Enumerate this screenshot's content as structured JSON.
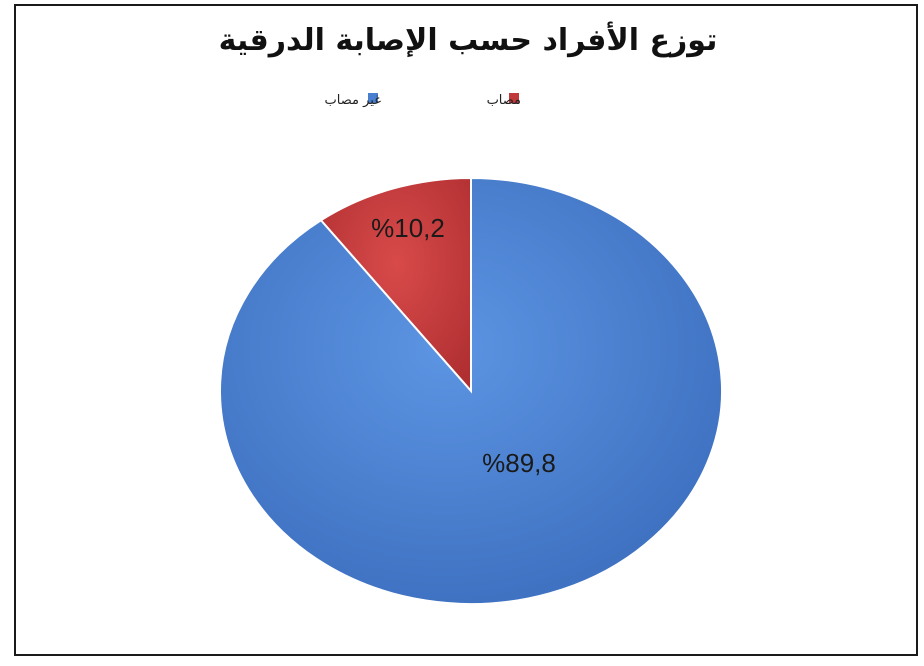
{
  "chart_data": {
    "type": "pie",
    "title": "توزع الأفراد حسب الإصابة الدرقية",
    "legend_position": "top",
    "slices": [
      {
        "name": "مصاب",
        "value": 10.2,
        "label": "%10,2",
        "color": "#c0393b"
      },
      {
        "name": "غير مصاب",
        "value": 89.8,
        "label": "%89,8",
        "color": "#4a7fcf"
      }
    ],
    "legend": [
      {
        "name": "غير مصاب",
        "color": "#4a7fcf"
      },
      {
        "name": "مصاب",
        "color": "#c0393b"
      }
    ]
  }
}
